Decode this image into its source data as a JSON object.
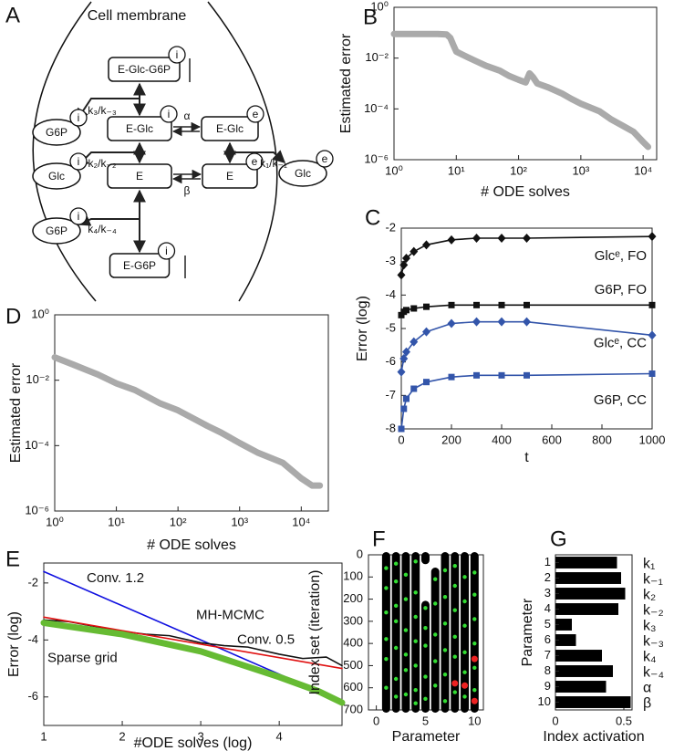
{
  "diagram": {
    "panel": "A",
    "membrane_label": "Cell membrane",
    "nodes": [
      {
        "label": "E-Glc-G6P",
        "badge": "i"
      },
      {
        "label": "E-Glc",
        "badge": "i"
      },
      {
        "label": "E-Glc",
        "badge": "e"
      },
      {
        "label": "E"
      },
      {
        "label": "E",
        "badge": "e"
      },
      {
        "label": "E-G6P",
        "badge": "i"
      },
      {
        "label": "G6P",
        "badge": "i"
      },
      {
        "label": "Glc",
        "badge": "i"
      },
      {
        "label": "G6P",
        "badge": "i"
      },
      {
        "label": "Glc",
        "badge": "e"
      }
    ],
    "rates": [
      "k₃/k₋₃",
      "k₂/k₋₂",
      "k₄/k₋₄",
      "k₁/k₋₁",
      "α",
      "β"
    ]
  },
  "chart_data": [
    {
      "type": "line",
      "panel": "B",
      "xlabel": "# ODE solves",
      "ylabel": "Estimated error",
      "xscale": "log",
      "yscale": "log",
      "xlim": [
        1,
        16500
      ],
      "ylim": [
        1e-06,
        1
      ],
      "xticks": [
        {
          "value": 1,
          "label": "10⁰"
        },
        {
          "value": 10,
          "label": "10¹"
        },
        {
          "value": 100,
          "label": "10²"
        },
        {
          "value": 1000,
          "label": "10³"
        },
        {
          "value": 10000,
          "label": "10⁴"
        }
      ],
      "yticks": [
        {
          "value": 1,
          "label": "10⁰"
        },
        {
          "value": 0.01,
          "label": "10⁻²"
        },
        {
          "value": 0.0001,
          "label": "10⁻⁴"
        },
        {
          "value": 1e-06,
          "label": "10⁻⁶"
        }
      ],
      "x": [
        1,
        2,
        5,
        7,
        8,
        9,
        10,
        15,
        20,
        30,
        50,
        70,
        100,
        130,
        150,
        170,
        200,
        300,
        500,
        700,
        1000,
        2000,
        3000,
        5000,
        7000,
        10000,
        12000
      ],
      "series": [
        {
          "color": "#aaaaaa",
          "values": [
            0.089,
            0.089,
            0.089,
            0.085,
            0.063,
            0.032,
            0.018,
            0.011,
            0.0079,
            0.005,
            0.0032,
            0.002,
            0.0014,
            0.0011,
            0.0025,
            0.0018,
            0.001,
            0.0007,
            0.0004,
            0.00025,
            0.00016,
            8e-05,
            4e-05,
            2e-05,
            1.26e-05,
            5e-06,
            3.2e-06
          ]
        }
      ]
    },
    {
      "type": "line",
      "panel": "C",
      "xlabel": "t",
      "ylabel": "Error (log)",
      "xlim": [
        0,
        1000
      ],
      "ylim": [
        -8,
        -2
      ],
      "xticks": [
        0,
        200,
        400,
        600,
        800,
        1000
      ],
      "yticks": [
        -8,
        -7,
        -6,
        -5,
        -4,
        -3,
        -2
      ],
      "x": [
        0,
        10,
        20,
        50,
        100,
        200,
        300,
        400,
        500,
        1000
      ],
      "series": [
        {
          "name": "Glcᵉ, FO",
          "color": "#111111",
          "marker": "diamond",
          "values": [
            -3.4,
            -3.1,
            -2.9,
            -2.7,
            -2.5,
            -2.35,
            -2.3,
            -2.3,
            -2.3,
            -2.25
          ]
        },
        {
          "name": "G6P, FO",
          "color": "#111111",
          "marker": "square",
          "values": [
            -4.6,
            -4.5,
            -4.45,
            -4.4,
            -4.35,
            -4.3,
            -4.3,
            -4.3,
            -4.3,
            -4.3
          ]
        },
        {
          "name": "Glcᵉ, CC",
          "color": "#3355aa",
          "marker": "diamond",
          "values": [
            -6.3,
            -5.9,
            -5.7,
            -5.4,
            -5.1,
            -4.85,
            -4.8,
            -4.8,
            -4.8,
            -5.2
          ]
        },
        {
          "name": "G6P, CC",
          "color": "#3355aa",
          "marker": "square",
          "values": [
            -8,
            -7.4,
            -7.1,
            -6.8,
            -6.6,
            -6.45,
            -6.4,
            -6.4,
            -6.4,
            -6.35
          ]
        }
      ]
    },
    {
      "type": "line",
      "panel": "D",
      "xlabel": "# ODE solves",
      "ylabel": "Estimated error",
      "xscale": "log",
      "yscale": "log",
      "xlim": [
        1,
        27500
      ],
      "ylim": [
        1e-06,
        1
      ],
      "xticks": [
        {
          "value": 1,
          "label": "10⁰"
        },
        {
          "value": 10,
          "label": "10¹"
        },
        {
          "value": 100,
          "label": "10²"
        },
        {
          "value": 1000,
          "label": "10³"
        },
        {
          "value": 10000,
          "label": "10⁴"
        }
      ],
      "yticks": [
        {
          "value": 1,
          "label": "10⁰"
        },
        {
          "value": 0.01,
          "label": "10⁻²"
        },
        {
          "value": 0.0001,
          "label": "10⁻⁴"
        },
        {
          "value": 1e-06,
          "label": "10⁻⁶"
        }
      ],
      "x": [
        1,
        2,
        3,
        5,
        10,
        20,
        50,
        100,
        200,
        300,
        500,
        1000,
        2000,
        5000,
        10000,
        15000,
        20000
      ],
      "series": [
        {
          "color": "#aaaaaa",
          "values": [
            0.05,
            0.03,
            0.022,
            0.015,
            0.008,
            0.005,
            0.002,
            0.0012,
            0.0006,
            0.0004,
            0.00025,
            0.00012,
            6e-05,
            3e-05,
            1e-05,
            6e-06,
            6e-06
          ]
        }
      ]
    },
    {
      "type": "line",
      "panel": "E",
      "xlabel": "#ODE solves (log)",
      "ylabel": "Error (log)",
      "xlim": [
        1,
        4.8
      ],
      "ylim": [
        -7,
        -1.3
      ],
      "xticks": [
        1,
        2,
        3,
        4
      ],
      "yticks": [
        -6,
        -4,
        -2
      ],
      "series": [
        {
          "name": "Conv. 1.2",
          "color": "#1010e0",
          "x": [
            1,
            4.8
          ],
          "values": [
            -1.6,
            -6.16
          ]
        },
        {
          "name": "MH-MCMC",
          "color": "#111111",
          "x": [
            1,
            1.3,
            1.6,
            2,
            2.3,
            2.6,
            3,
            3.3,
            3.6,
            4,
            4.3,
            4.6,
            4.8
          ],
          "values": [
            -3.3,
            -3.35,
            -3.5,
            -3.7,
            -3.8,
            -3.85,
            -4.1,
            -4.2,
            -4.25,
            -4.5,
            -4.65,
            -4.6,
            -4.9
          ]
        },
        {
          "name": "Conv. 0.5",
          "color": "#e01010",
          "x": [
            1,
            4.8
          ],
          "values": [
            -3.2,
            -5.0
          ]
        },
        {
          "name": "Sparse grid",
          "color": "#66bb33",
          "x": [
            1,
            2,
            3,
            4,
            4.5,
            4.8
          ],
          "values": [
            -3.4,
            -3.8,
            -4.4,
            -5.3,
            -5.8,
            -6.2
          ]
        }
      ]
    },
    {
      "type": "strip",
      "panel": "F",
      "xlabel": "Parameter",
      "ylabel": "Index set (iteration)",
      "xlim": [
        -0.8,
        10.9
      ],
      "ylim": [
        0,
        700
      ],
      "y_reversed": true,
      "xticks": [
        0,
        5,
        10
      ],
      "yticks": [
        0,
        100,
        200,
        300,
        400,
        500,
        600,
        700
      ],
      "x": [
        1,
        2,
        3,
        4,
        5,
        6,
        7,
        8,
        9,
        10
      ],
      "black_ranges": [
        [
          [
            0,
            700
          ]
        ],
        [
          [
            0,
            700
          ]
        ],
        [
          [
            0,
            700
          ]
        ],
        [
          [
            0,
            700
          ]
        ],
        [
          [
            0,
            30
          ],
          [
            220,
            700
          ]
        ],
        [
          [
            70,
            700
          ]
        ],
        [
          [
            0,
            700
          ]
        ],
        [
          [
            0,
            700
          ]
        ],
        [
          [
            0,
            700
          ]
        ],
        [
          [
            0,
            700
          ]
        ]
      ],
      "points": [
        {
          "color": "#33dd33",
          "x": [
            1,
            1,
            1,
            1,
            1,
            1,
            2,
            2,
            2,
            2,
            2,
            2,
            2,
            3,
            3,
            3,
            3,
            3,
            3,
            4,
            4,
            4,
            4,
            4,
            4,
            4,
            5,
            5,
            5,
            5,
            5,
            6,
            6,
            6,
            6,
            6,
            7,
            7,
            7,
            7,
            7,
            7,
            8,
            8,
            8,
            8,
            8,
            8,
            9,
            9,
            9,
            9,
            9,
            9,
            10,
            10,
            10,
            10,
            10,
            10
          ],
          "y": [
            60,
            150,
            260,
            380,
            470,
            600,
            40,
            120,
            230,
            300,
            420,
            560,
            640,
            90,
            200,
            340,
            450,
            520,
            630,
            30,
            170,
            280,
            390,
            500,
            610,
            670,
            240,
            330,
            410,
            550,
            650,
            110,
            220,
            360,
            480,
            590,
            70,
            190,
            310,
            430,
            540,
            660,
            50,
            140,
            250,
            370,
            460,
            620,
            100,
            210,
            320,
            440,
            530,
            640,
            80,
            180,
            290,
            400,
            510,
            610
          ]
        },
        {
          "color": "#ee2222",
          "x": [
            8,
            9,
            10,
            10
          ],
          "y": [
            580,
            590,
            470,
            660
          ]
        }
      ]
    },
    {
      "type": "hbar",
      "panel": "G",
      "xlabel": "Index activation",
      "ylabel": "Parameter",
      "xlim": [
        0,
        0.56
      ],
      "xticks": [
        0,
        0.5
      ],
      "color": "#000000",
      "categories": [
        "1",
        "2",
        "3",
        "4",
        "5",
        "6",
        "7",
        "8",
        "9",
        "10"
      ],
      "param_labels": [
        "k₁",
        "k₋₁",
        "k₂",
        "k₋₂",
        "k₃",
        "k₋₃",
        "k₄",
        "k₋₄",
        "α",
        "β"
      ],
      "values": [
        0.45,
        0.48,
        0.51,
        0.46,
        0.12,
        0.15,
        0.34,
        0.42,
        0.37,
        0.55
      ]
    }
  ]
}
